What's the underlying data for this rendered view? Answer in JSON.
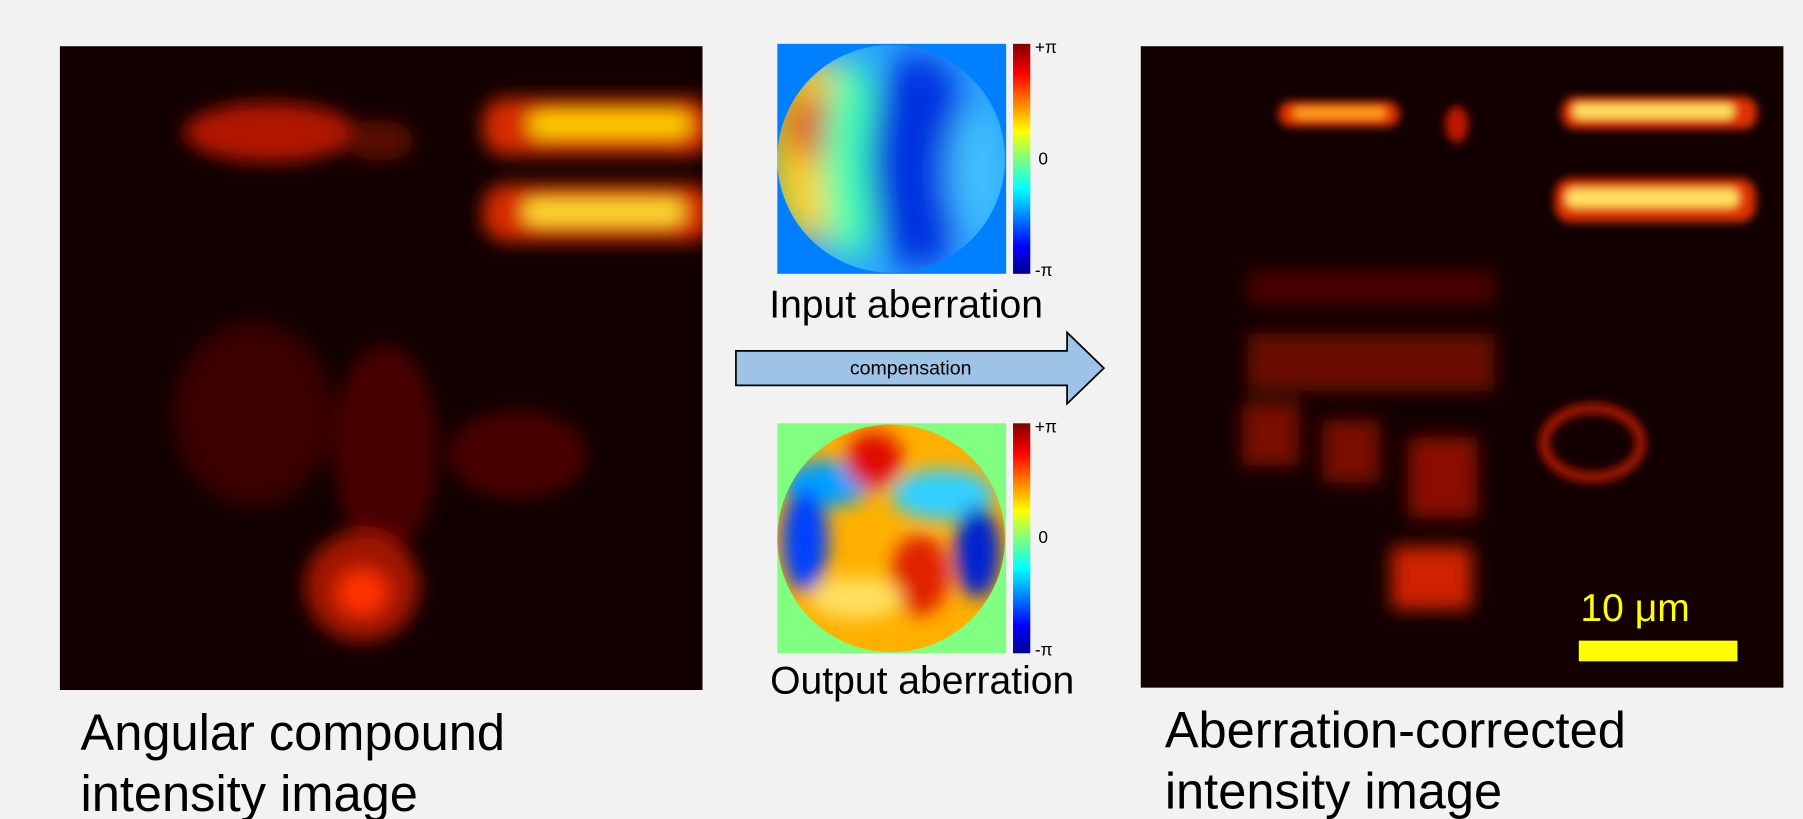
{
  "left_panel": {
    "caption": [
      "Angular compound",
      "intensity image"
    ]
  },
  "input_panel": {
    "label": "Input aberration",
    "colorbar_labels": [
      "+π",
      "0",
      "-π"
    ]
  },
  "arrow": {
    "label": "compensation"
  },
  "output_panel": {
    "label": "Output aberration",
    "colorbar_labels": [
      "+π",
      "0",
      "-π"
    ]
  },
  "right_panel": {
    "caption": [
      "Aberration-corrected",
      "intensity image"
    ],
    "scale_bar": "10 μm"
  }
}
